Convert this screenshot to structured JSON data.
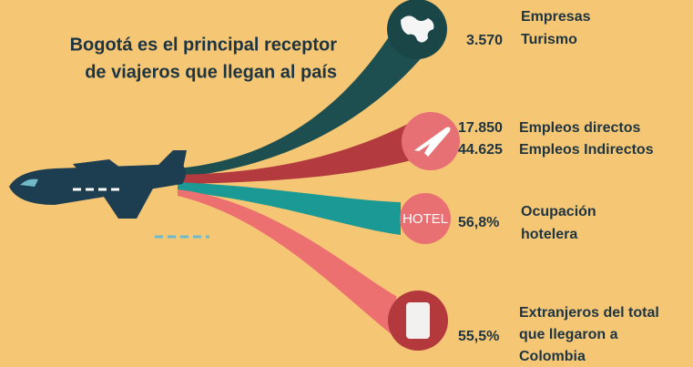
{
  "title": {
    "lines": [
      "Bogotá es el principal receptor",
      "de viajeros que llegan al país"
    ]
  },
  "items": [
    {
      "value": "3.570",
      "label": [
        "Empresas",
        "Turismo"
      ]
    },
    {
      "values": [
        "17.850",
        "44.625"
      ],
      "labels": [
        "Empleos directos",
        "Empleos Indirectos"
      ]
    },
    {
      "icon_text": "HOTEL",
      "value": "56,8%",
      "label": [
        "Ocupación",
        "hotelera"
      ]
    },
    {
      "value": "55,5%",
      "label": [
        "Extranjeros del total",
        "que llegaron a",
        "Colombia"
      ]
    }
  ]
}
